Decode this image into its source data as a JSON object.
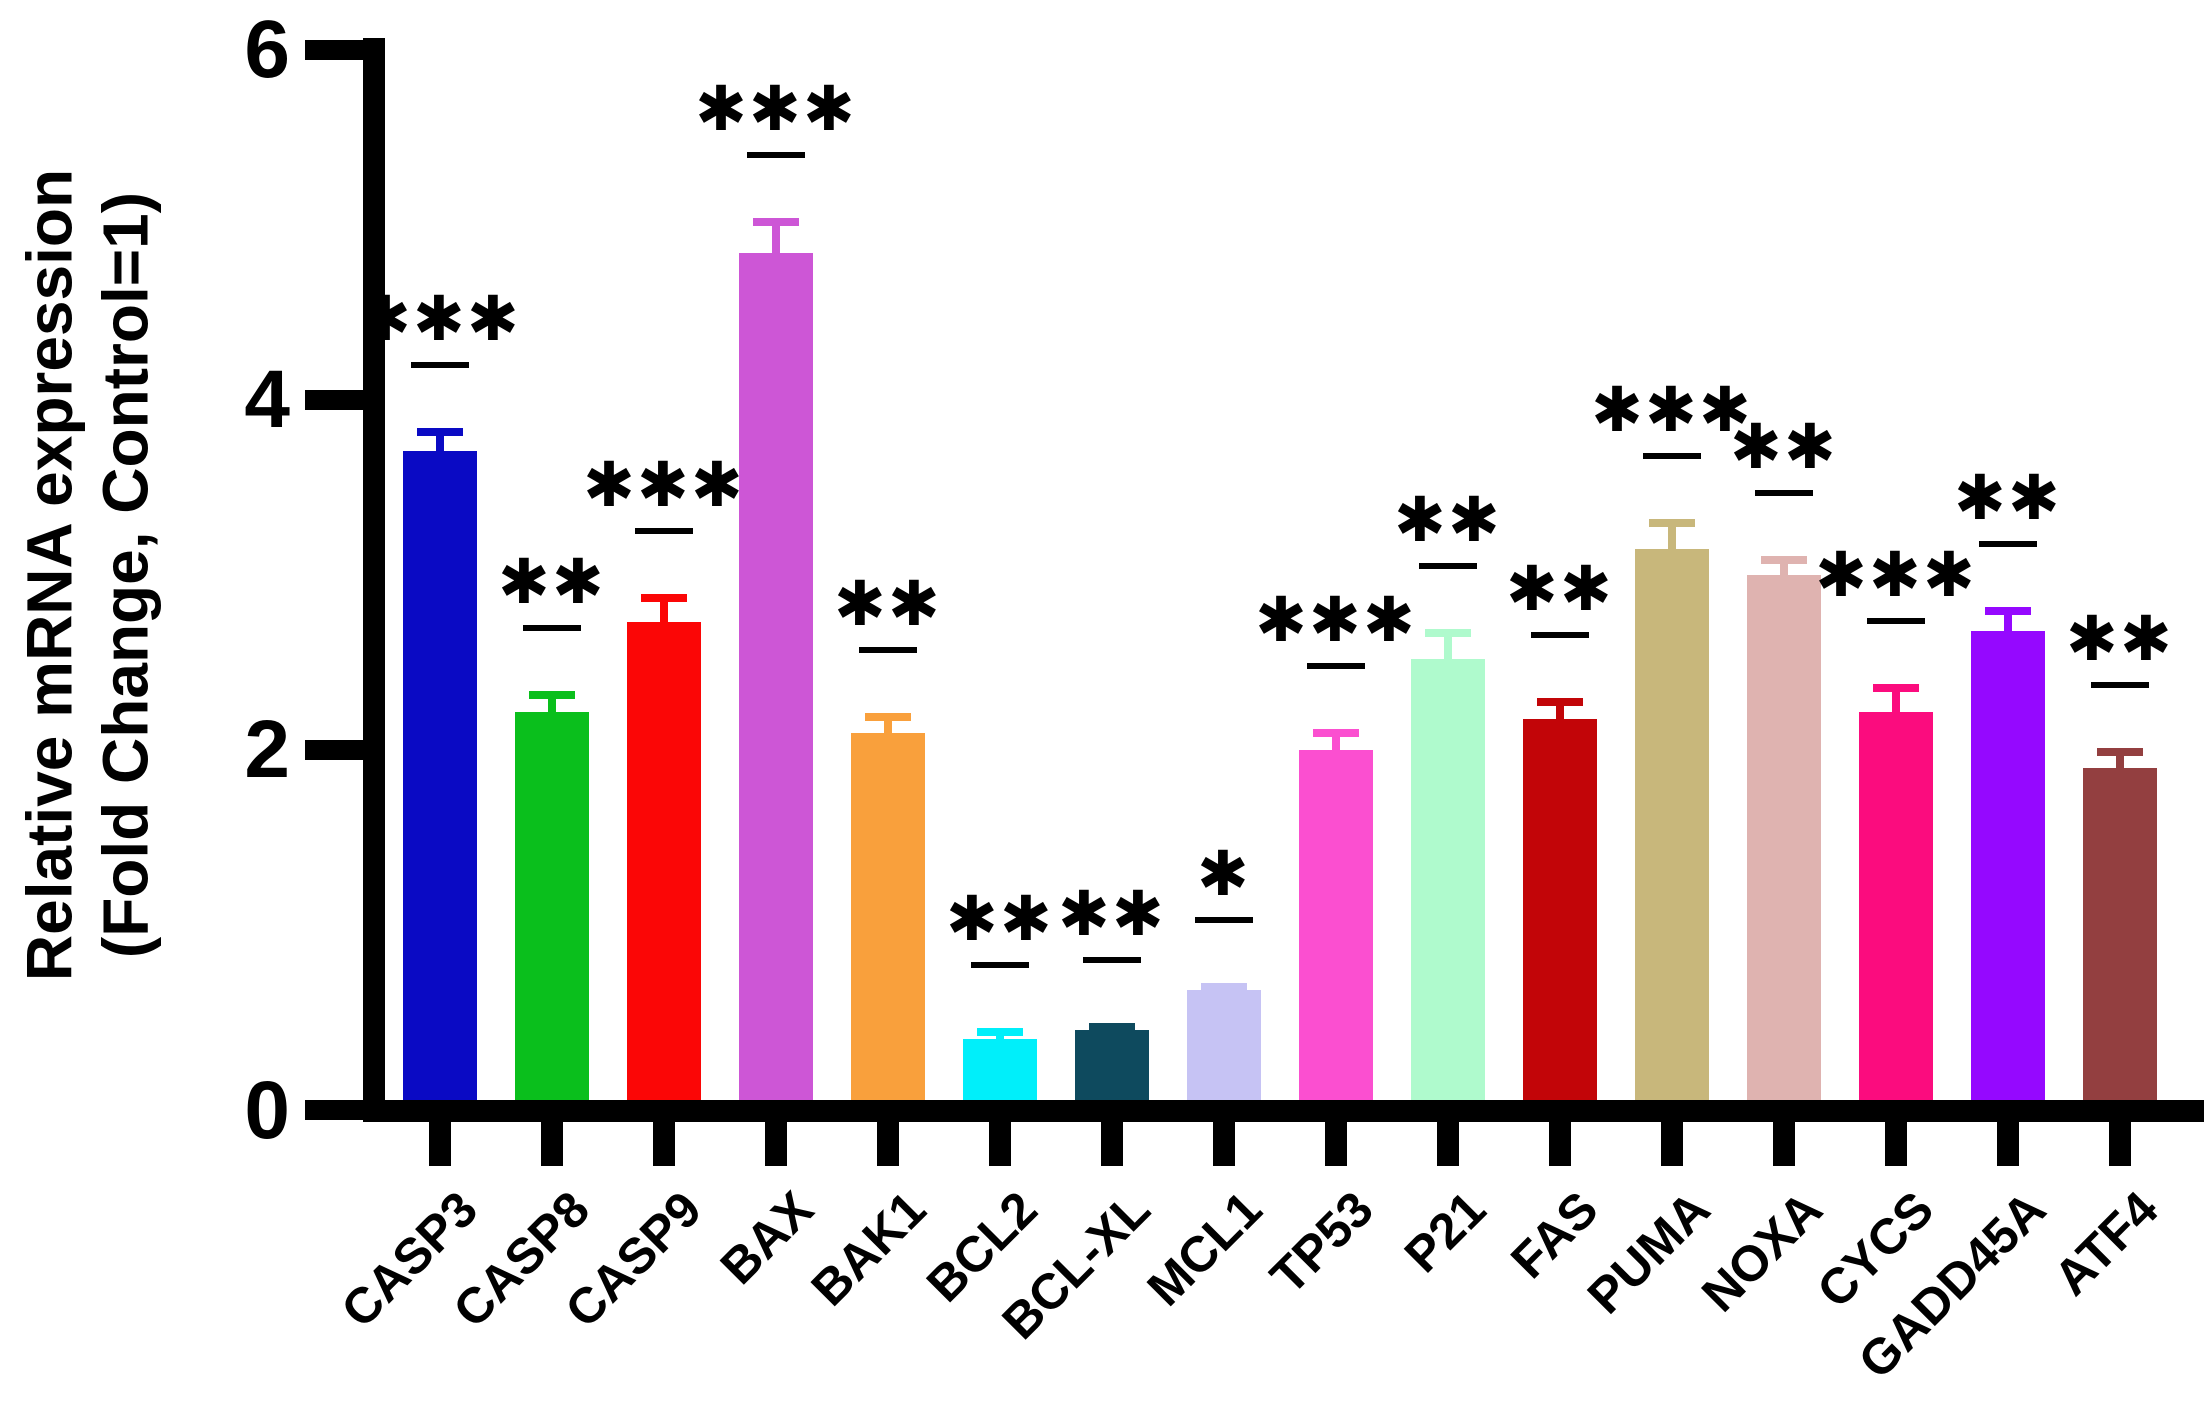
{
  "figure": {
    "background": "#ffffff",
    "axis_color": "#000000",
    "ylabel_line1": "Relative mRNA expression",
    "ylabel_line2": "(Fold Change, Control=1)"
  },
  "chart_data": {
    "type": "bar",
    "title": "",
    "xlabel": "",
    "ylabel": "Relative mRNA expression (Fold Change, Control=1)",
    "ylabel_lines": [
      "Relative mRNA expression",
      "(Fold Change, Control=1)"
    ],
    "ylim": [
      0,
      6
    ],
    "yticks": [
      0,
      2,
      4,
      6
    ],
    "grid": false,
    "legend": false,
    "error_bars": "sd, same color as bar, cap on top",
    "annotation_style": "asterisks above short black line above each error bar",
    "categories": [
      "CASP3",
      "CASP8",
      "CASP9",
      "BAX",
      "BAK1",
      "BCL2",
      "BCL-XL",
      "MCL1",
      "TP53",
      "P21",
      "FAS",
      "PUMA",
      "NOXA",
      "CYCS",
      "GADD45A",
      "ATF4"
    ],
    "values": [
      3.71,
      2.22,
      2.73,
      4.84,
      2.1,
      0.35,
      0.4,
      0.63,
      2.0,
      2.52,
      2.18,
      3.15,
      3.0,
      2.22,
      2.68,
      1.9
    ],
    "errors": [
      0.13,
      0.12,
      0.16,
      0.2,
      0.11,
      0.06,
      0.04,
      0.04,
      0.12,
      0.17,
      0.12,
      0.17,
      0.11,
      0.16,
      0.14,
      0.11
    ],
    "significance": [
      "***",
      "**",
      "***",
      "***",
      "**",
      "**",
      "**",
      "*",
      "***",
      "**",
      "**",
      "***",
      "**",
      "***",
      "**",
      "**"
    ],
    "colors": [
      "#0a0ac4",
      "#0abf1c",
      "#fb0606",
      "#cd56d6",
      "#f9a03c",
      "#00effa",
      "#0e4a5e",
      "#c6c3f4",
      "#fb4fd0",
      "#affacd",
      "#c20508",
      "#c8b77b",
      "#dfb3b0",
      "#fb0c7e",
      "#9508ff",
      "#933f40"
    ]
  }
}
